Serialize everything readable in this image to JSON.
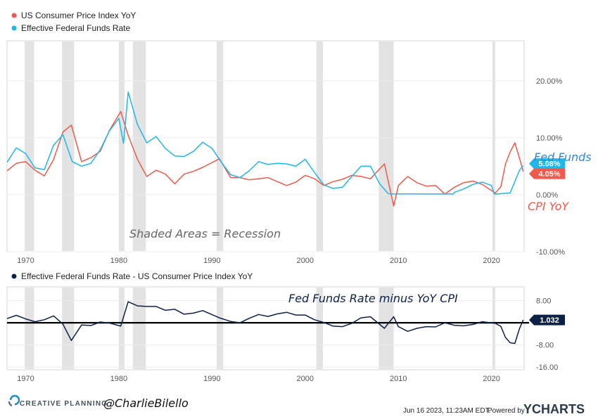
{
  "colors": {
    "cpi": "#ef5a4c",
    "fed": "#1fb7ea",
    "spread": "#0d2147",
    "recession": "#e3e3e3",
    "annotation_blue": "#2f86d6"
  },
  "legend": {
    "cpi": "US Consumer Price Index YoY",
    "fed": "Effective Federal Funds Rate",
    "spread": "Effective Federal Funds Rate - US Consumer Price Index YoY"
  },
  "annotations": {
    "fed_funds": "Fed Funds",
    "cpi_yoy": "CPI YoY",
    "recession_note": "Shaded Areas = Recession",
    "spread_title": "Fed Funds Rate minus YoY CPI"
  },
  "footer": {
    "brand": "CREATIVE PLANNING",
    "handle": "@CharlieBilello",
    "timestamp": "Jun 16 2023, 11:23AM EDT.",
    "powered_by": "Powered by",
    "ycharts": "YCHARTS"
  },
  "chart_data": [
    {
      "type": "line",
      "x_range": [
        1968,
        2023.5
      ],
      "ylim": [
        -10,
        27
      ],
      "y_ticks": [
        20,
        10,
        0,
        -10
      ],
      "y_tick_labels": [
        "20.00%",
        "10.00%",
        "0.00%",
        "-10.00%"
      ],
      "x_ticks": [
        1970,
        1980,
        1990,
        2000,
        2010,
        2020
      ],
      "x_tick_labels": [
        "1970",
        "1980",
        "1990",
        "2000",
        "2010",
        "2020"
      ],
      "end_labels": {
        "fed": "5.08%",
        "cpi": "4.05%"
      },
      "recessions": [
        [
          1969.9,
          1970.9
        ],
        [
          1973.9,
          1975.2
        ],
        [
          1980.0,
          1980.6
        ],
        [
          1981.5,
          1982.9
        ],
        [
          1990.5,
          1991.2
        ],
        [
          2001.2,
          2001.9
        ],
        [
          2007.9,
          2009.5
        ],
        [
          2020.1,
          2020.4
        ]
      ],
      "series": [
        {
          "key": "cpi",
          "name": "US Consumer Price Index YoY",
          "x": [
            1968,
            1969,
            1970,
            1971,
            1972,
            1973,
            1974,
            1974.9,
            1976,
            1977,
            1978,
            1979,
            1980.2,
            1981,
            1982,
            1983,
            1984,
            1985,
            1986,
            1987,
            1988,
            1989,
            1990.8,
            1992,
            1993,
            1994,
            1995,
            1996,
            1997,
            1998,
            1999,
            2000,
            2001,
            2002,
            2003,
            2004,
            2005,
            2006,
            2007,
            2008.5,
            2009.5,
            2010,
            2011,
            2012,
            2013,
            2014,
            2015,
            2016,
            2017,
            2018,
            2019,
            2020.4,
            2021,
            2021.5,
            2022,
            2022.5,
            2023,
            2023.4
          ],
          "y": [
            4.2,
            5.5,
            5.8,
            4.3,
            3.3,
            6.2,
            11.0,
            12.2,
            5.8,
            6.5,
            7.6,
            11.3,
            14.6,
            10.4,
            6.2,
            3.2,
            4.3,
            3.6,
            1.9,
            3.6,
            4.1,
            4.8,
            6.3,
            3.0,
            3.0,
            2.6,
            2.8,
            3.0,
            2.3,
            1.6,
            2.2,
            3.4,
            2.8,
            1.6,
            2.3,
            2.7,
            3.4,
            3.2,
            2.8,
            5.4,
            -2.0,
            1.6,
            3.2,
            2.1,
            1.5,
            1.6,
            0.1,
            1.3,
            2.1,
            2.4,
            1.8,
            0.3,
            1.4,
            5.4,
            7.5,
            9.1,
            6.4,
            4.05
          ]
        },
        {
          "key": "fed",
          "name": "Effective Federal Funds Rate",
          "x": [
            1968,
            1969,
            1970,
            1971,
            1972,
            1973,
            1974,
            1975,
            1976,
            1977,
            1978,
            1979,
            1980,
            1980.5,
            1981,
            1982,
            1983,
            1984,
            1985,
            1986,
            1987,
            1988,
            1989,
            1990,
            1991,
            1992,
            1993,
            1994,
            1995,
            1996,
            1997,
            1998,
            1999,
            2000,
            2001,
            2002,
            2003,
            2004,
            2005,
            2006,
            2007,
            2008,
            2008.9,
            2009,
            2015.9,
            2016,
            2017,
            2018,
            2019,
            2020,
            2020.3,
            2022,
            2022.5,
            2023,
            2023.4
          ],
          "y": [
            5.7,
            8.2,
            7.2,
            4.7,
            4.4,
            8.7,
            10.5,
            5.8,
            5.0,
            5.5,
            7.9,
            11.2,
            13.4,
            9.0,
            18.0,
            12.3,
            9.1,
            10.2,
            8.1,
            6.8,
            6.7,
            7.6,
            9.2,
            8.1,
            5.7,
            3.5,
            3.0,
            4.2,
            5.8,
            5.3,
            5.5,
            5.4,
            5.0,
            6.2,
            3.9,
            1.7,
            1.1,
            1.3,
            3.2,
            5.0,
            5.0,
            1.9,
            0.2,
            0.15,
            0.13,
            0.4,
            1.0,
            1.8,
            2.2,
            1.6,
            0.1,
            0.3,
            2.3,
            4.3,
            5.08
          ]
        }
      ]
    },
    {
      "type": "line",
      "x_range": [
        1968,
        2023.5
      ],
      "ylim": [
        -17,
        13
      ],
      "y_ticks": [
        8,
        -8,
        -16
      ],
      "y_tick_labels": [
        "8.00",
        "-8.00",
        "-16.00"
      ],
      "x_ticks": [
        1970,
        1980,
        1990,
        2000,
        2010,
        2020
      ],
      "x_tick_labels": [
        "1970",
        "1980",
        "1990",
        "2000",
        "2010",
        "2020"
      ],
      "end_label": "1.032",
      "series": [
        {
          "key": "spread",
          "name": "Effective Federal Funds Rate - US Consumer Price Index YoY",
          "x": [
            1968,
            1969,
            1970,
            1971,
            1972,
            1973,
            1974,
            1974.9,
            1976,
            1977,
            1978,
            1979,
            1980.2,
            1981,
            1982,
            1983,
            1984,
            1985,
            1986,
            1987,
            1988,
            1989,
            1990.8,
            1992,
            1993,
            1994,
            1995,
            1996,
            1997,
            1998,
            1999,
            2000,
            2001,
            2002,
            2003,
            2004,
            2005,
            2006,
            2007,
            2008.5,
            2009.5,
            2010,
            2011,
            2012,
            2013,
            2014,
            2015,
            2016,
            2017,
            2018,
            2019,
            2020.4,
            2021,
            2021.5,
            2022,
            2022.5,
            2023,
            2023.4
          ],
          "y": [
            1.5,
            2.7,
            1.4,
            0.4,
            1.1,
            2.5,
            -0.5,
            -6.4,
            -0.8,
            -1.0,
            0.3,
            -0.1,
            -1.2,
            7.6,
            6.1,
            5.9,
            5.9,
            4.5,
            4.9,
            3.1,
            3.5,
            4.4,
            1.8,
            0.5,
            0.0,
            1.6,
            3.0,
            2.3,
            3.2,
            3.8,
            2.8,
            2.8,
            1.1,
            0.1,
            -1.2,
            -1.4,
            -0.2,
            1.8,
            2.2,
            -2.0,
            2.2,
            -1.4,
            -3.1,
            -2.0,
            -1.4,
            -1.5,
            0.0,
            -0.9,
            -1.1,
            -0.6,
            0.4,
            -0.2,
            -1.3,
            -5.3,
            -7.2,
            -7.5,
            -2.1,
            1.032
          ]
        }
      ]
    }
  ]
}
